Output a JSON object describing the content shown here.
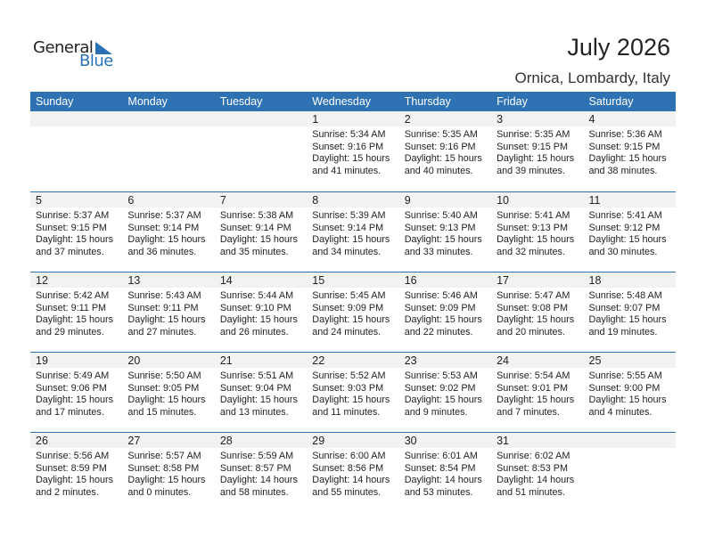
{
  "logo": {
    "text_general": "General",
    "text_blue": "Blue"
  },
  "title": "July 2026",
  "location": "Ornica, Lombardy, Italy",
  "colors": {
    "header": "#2e72b4",
    "band": "#f2f2f2",
    "brand": "#2a72b5"
  },
  "days": [
    "Sunday",
    "Monday",
    "Tuesday",
    "Wednesday",
    "Thursday",
    "Friday",
    "Saturday"
  ],
  "weeks": [
    [
      null,
      null,
      null,
      {
        "day": "1",
        "sunrise": "Sunrise: 5:34 AM",
        "sunset": "Sunset: 9:16 PM",
        "d1": "Daylight: 15 hours",
        "d2": "and 41 minutes."
      },
      {
        "day": "2",
        "sunrise": "Sunrise: 5:35 AM",
        "sunset": "Sunset: 9:16 PM",
        "d1": "Daylight: 15 hours",
        "d2": "and 40 minutes."
      },
      {
        "day": "3",
        "sunrise": "Sunrise: 5:35 AM",
        "sunset": "Sunset: 9:15 PM",
        "d1": "Daylight: 15 hours",
        "d2": "and 39 minutes."
      },
      {
        "day": "4",
        "sunrise": "Sunrise: 5:36 AM",
        "sunset": "Sunset: 9:15 PM",
        "d1": "Daylight: 15 hours",
        "d2": "and 38 minutes."
      }
    ],
    [
      {
        "day": "5",
        "sunrise": "Sunrise: 5:37 AM",
        "sunset": "Sunset: 9:15 PM",
        "d1": "Daylight: 15 hours",
        "d2": "and 37 minutes."
      },
      {
        "day": "6",
        "sunrise": "Sunrise: 5:37 AM",
        "sunset": "Sunset: 9:14 PM",
        "d1": "Daylight: 15 hours",
        "d2": "and 36 minutes."
      },
      {
        "day": "7",
        "sunrise": "Sunrise: 5:38 AM",
        "sunset": "Sunset: 9:14 PM",
        "d1": "Daylight: 15 hours",
        "d2": "and 35 minutes."
      },
      {
        "day": "8",
        "sunrise": "Sunrise: 5:39 AM",
        "sunset": "Sunset: 9:14 PM",
        "d1": "Daylight: 15 hours",
        "d2": "and 34 minutes."
      },
      {
        "day": "9",
        "sunrise": "Sunrise: 5:40 AM",
        "sunset": "Sunset: 9:13 PM",
        "d1": "Daylight: 15 hours",
        "d2": "and 33 minutes."
      },
      {
        "day": "10",
        "sunrise": "Sunrise: 5:41 AM",
        "sunset": "Sunset: 9:13 PM",
        "d1": "Daylight: 15 hours",
        "d2": "and 32 minutes."
      },
      {
        "day": "11",
        "sunrise": "Sunrise: 5:41 AM",
        "sunset": "Sunset: 9:12 PM",
        "d1": "Daylight: 15 hours",
        "d2": "and 30 minutes."
      }
    ],
    [
      {
        "day": "12",
        "sunrise": "Sunrise: 5:42 AM",
        "sunset": "Sunset: 9:11 PM",
        "d1": "Daylight: 15 hours",
        "d2": "and 29 minutes."
      },
      {
        "day": "13",
        "sunrise": "Sunrise: 5:43 AM",
        "sunset": "Sunset: 9:11 PM",
        "d1": "Daylight: 15 hours",
        "d2": "and 27 minutes."
      },
      {
        "day": "14",
        "sunrise": "Sunrise: 5:44 AM",
        "sunset": "Sunset: 9:10 PM",
        "d1": "Daylight: 15 hours",
        "d2": "and 26 minutes."
      },
      {
        "day": "15",
        "sunrise": "Sunrise: 5:45 AM",
        "sunset": "Sunset: 9:09 PM",
        "d1": "Daylight: 15 hours",
        "d2": "and 24 minutes."
      },
      {
        "day": "16",
        "sunrise": "Sunrise: 5:46 AM",
        "sunset": "Sunset: 9:09 PM",
        "d1": "Daylight: 15 hours",
        "d2": "and 22 minutes."
      },
      {
        "day": "17",
        "sunrise": "Sunrise: 5:47 AM",
        "sunset": "Sunset: 9:08 PM",
        "d1": "Daylight: 15 hours",
        "d2": "and 20 minutes."
      },
      {
        "day": "18",
        "sunrise": "Sunrise: 5:48 AM",
        "sunset": "Sunset: 9:07 PM",
        "d1": "Daylight: 15 hours",
        "d2": "and 19 minutes."
      }
    ],
    [
      {
        "day": "19",
        "sunrise": "Sunrise: 5:49 AM",
        "sunset": "Sunset: 9:06 PM",
        "d1": "Daylight: 15 hours",
        "d2": "and 17 minutes."
      },
      {
        "day": "20",
        "sunrise": "Sunrise: 5:50 AM",
        "sunset": "Sunset: 9:05 PM",
        "d1": "Daylight: 15 hours",
        "d2": "and 15 minutes."
      },
      {
        "day": "21",
        "sunrise": "Sunrise: 5:51 AM",
        "sunset": "Sunset: 9:04 PM",
        "d1": "Daylight: 15 hours",
        "d2": "and 13 minutes."
      },
      {
        "day": "22",
        "sunrise": "Sunrise: 5:52 AM",
        "sunset": "Sunset: 9:03 PM",
        "d1": "Daylight: 15 hours",
        "d2": "and 11 minutes."
      },
      {
        "day": "23",
        "sunrise": "Sunrise: 5:53 AM",
        "sunset": "Sunset: 9:02 PM",
        "d1": "Daylight: 15 hours",
        "d2": "and 9 minutes."
      },
      {
        "day": "24",
        "sunrise": "Sunrise: 5:54 AM",
        "sunset": "Sunset: 9:01 PM",
        "d1": "Daylight: 15 hours",
        "d2": "and 7 minutes."
      },
      {
        "day": "25",
        "sunrise": "Sunrise: 5:55 AM",
        "sunset": "Sunset: 9:00 PM",
        "d1": "Daylight: 15 hours",
        "d2": "and 4 minutes."
      }
    ],
    [
      {
        "day": "26",
        "sunrise": "Sunrise: 5:56 AM",
        "sunset": "Sunset: 8:59 PM",
        "d1": "Daylight: 15 hours",
        "d2": "and 2 minutes."
      },
      {
        "day": "27",
        "sunrise": "Sunrise: 5:57 AM",
        "sunset": "Sunset: 8:58 PM",
        "d1": "Daylight: 15 hours",
        "d2": "and 0 minutes."
      },
      {
        "day": "28",
        "sunrise": "Sunrise: 5:59 AM",
        "sunset": "Sunset: 8:57 PM",
        "d1": "Daylight: 14 hours",
        "d2": "and 58 minutes."
      },
      {
        "day": "29",
        "sunrise": "Sunrise: 6:00 AM",
        "sunset": "Sunset: 8:56 PM",
        "d1": "Daylight: 14 hours",
        "d2": "and 55 minutes."
      },
      {
        "day": "30",
        "sunrise": "Sunrise: 6:01 AM",
        "sunset": "Sunset: 8:54 PM",
        "d1": "Daylight: 14 hours",
        "d2": "and 53 minutes."
      },
      {
        "day": "31",
        "sunrise": "Sunrise: 6:02 AM",
        "sunset": "Sunset: 8:53 PM",
        "d1": "Daylight: 14 hours",
        "d2": "and 51 minutes."
      },
      null
    ]
  ]
}
